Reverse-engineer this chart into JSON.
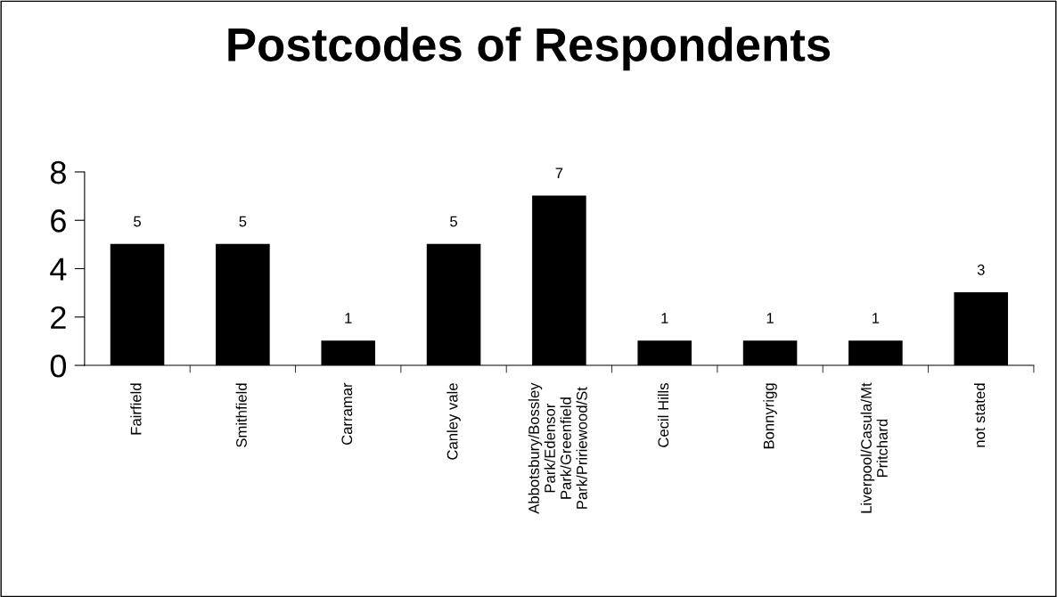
{
  "chart_data": {
    "type": "bar",
    "title": "Postcodes of Respondents",
    "categories": [
      "Fairfield",
      "Smithfield",
      "Carramar",
      "Canley vale",
      "Abbotsbury/Bossley\nPark/Edensor\nPark/Greenfield\nPark/Pririewood/St",
      "Cecil Hills",
      "Bonnyrigg",
      "Liverpool/Casula/Mt\nPritchard",
      "not stated"
    ],
    "values": [
      5,
      5,
      1,
      5,
      7,
      1,
      1,
      1,
      3
    ],
    "color": "#000000",
    "ylim": [
      0,
      8
    ],
    "yticks": [
      0,
      2,
      4,
      6,
      8
    ],
    "data_labels": true,
    "grid": false,
    "legend": false
  }
}
